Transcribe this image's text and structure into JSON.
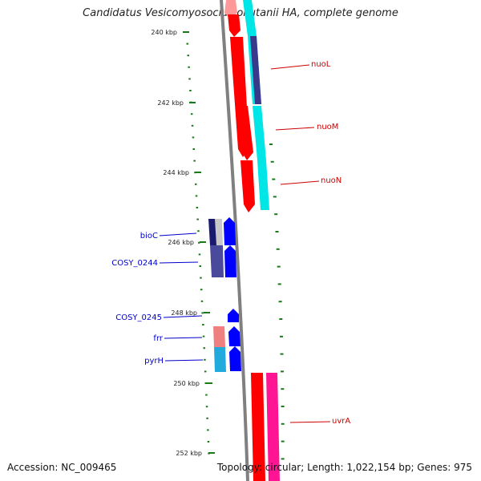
{
  "title": "Candidatus Vesicomyosocius okutanii HA, complete genome",
  "footer": {
    "accession": "Accession: NC_009465",
    "summary": "Topology: circular; Length: 1,022,154 bp; Genes: 975"
  },
  "ticks": [
    {
      "label": "240 kbp"
    },
    {
      "label": "242 kbp"
    },
    {
      "label": "244 kbp"
    },
    {
      "label": "246 kbp"
    },
    {
      "label": "248 kbp"
    },
    {
      "label": "250 kbp"
    },
    {
      "label": "252 kbp"
    }
  ],
  "genes_right": [
    {
      "label": "nuoL",
      "color": "#cc0000"
    },
    {
      "label": "nuoM",
      "color": "#cc0000"
    },
    {
      "label": "nuoN",
      "color": "#cc0000"
    },
    {
      "label": "uvrA",
      "color": "#cc0000"
    }
  ],
  "genes_left": [
    {
      "label": "bioC",
      "color": "#0000cc"
    },
    {
      "label": "COSY_0244",
      "color": "#0000cc"
    },
    {
      "label": "COSY_0245",
      "color": "#0000cc"
    },
    {
      "label": "frr",
      "color": "#0000cc"
    },
    {
      "label": "pyrH",
      "color": "#0000cc"
    }
  ],
  "colors": {
    "backbone": "#808080",
    "forward_cds": "#ff0000",
    "reverse_cds": "#0000ff",
    "cyan_track": "#00e5e5",
    "navy_track": "#3a3a8c",
    "tick_green": "#1a7a1a"
  }
}
